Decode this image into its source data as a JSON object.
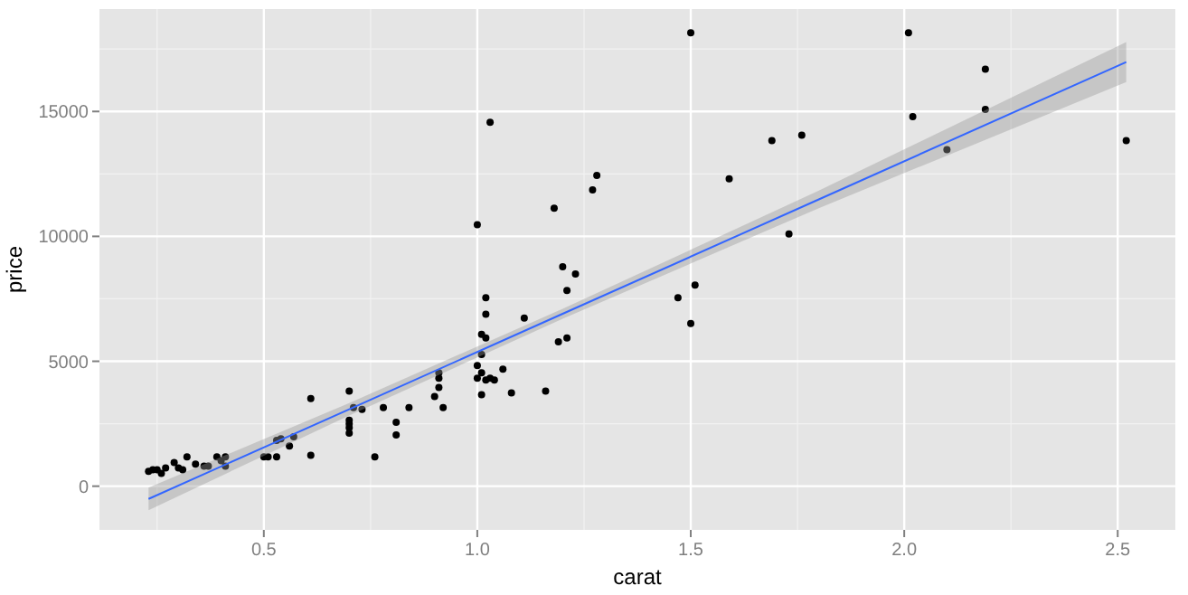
{
  "chart_data": {
    "type": "scatter",
    "xlabel": "carat",
    "ylabel": "price",
    "xlim": [
      0.115,
      2.635
    ],
    "ylim": [
      -1750,
      19100
    ],
    "xticks": [
      0.5,
      {
        "value": 1,
        "label": "1.0"
      },
      1.5,
      {
        "value": 2,
        "label": "2.0"
      },
      2.5
    ],
    "yticks": [
      0,
      5000,
      10000,
      15000
    ],
    "grid": true,
    "series": [
      {
        "color": "#000000",
        "marker": "circle",
        "x": [
          0.23,
          0.24,
          0.25,
          0.26,
          0.27,
          0.29,
          0.3,
          0.31,
          0.32,
          0.34,
          0.36,
          0.37,
          0.39,
          0.4,
          0.41,
          0.41,
          0.5,
          0.51,
          0.53,
          0.53,
          0.54,
          0.56,
          0.57,
          0.61,
          0.61,
          0.7,
          0.7,
          0.7,
          0.7,
          0.7,
          0.71,
          0.73,
          0.76,
          0.78,
          0.81,
          0.81,
          0.84,
          0.9,
          0.91,
          0.91,
          0.91,
          0.92,
          1.0,
          1.0,
          1.01,
          1.03,
          1.06,
          1.08,
          1.01,
          1.0,
          1.18,
          1.27,
          1.28,
          1.59,
          1.03,
          1.02,
          1.02,
          1.11,
          1.2,
          1.23,
          1.21,
          1.01,
          1.02,
          1.19,
          1.21,
          1.01,
          1.02,
          1.04,
          1.16,
          1.47,
          1.51,
          1.5,
          1.5,
          2.01,
          2.19,
          2.02,
          2.19,
          2.1,
          2.52,
          1.69,
          1.76,
          1.73
        ],
        "values": [
          590,
          660,
          660,
          510,
          730,
          950,
          730,
          660,
          1170,
          880,
          800,
          800,
          1170,
          1020,
          800,
          1170,
          1170,
          1170,
          1170,
          1830,
          1900,
          1610,
          1980,
          3510,
          1240,
          3810,
          2640,
          2340,
          2120,
          2490,
          3150,
          3070,
          1170,
          3150,
          2560,
          2050,
          3150,
          3590,
          4540,
          4320,
          3950,
          3150,
          4830,
          4320,
          4540,
          4320,
          4680,
          3730,
          3660,
          10470,
          11130,
          11860,
          12440,
          12300,
          14570,
          7540,
          6880,
          6730,
          8780,
          8490,
          7830,
          6080,
          5930,
          5780,
          5930,
          5270,
          4250,
          4250,
          3810,
          7540,
          8050,
          6510,
          18150,
          18150,
          16690,
          14790,
          15080,
          13470,
          13830,
          13830,
          14050,
          10100
        ]
      },
      {
        "type": "line",
        "color": "#3366ff",
        "x": [
          0.23,
          0.7,
          1.2,
          1.8,
          2.52
        ],
        "values": [
          -510,
          3080,
          6900,
          11480,
          16980
        ],
        "lower": [
          -960,
          2830,
          6700,
          11130,
          16180
        ],
        "upper": [
          -60,
          3330,
          7100,
          11830,
          17780
        ]
      }
    ]
  }
}
